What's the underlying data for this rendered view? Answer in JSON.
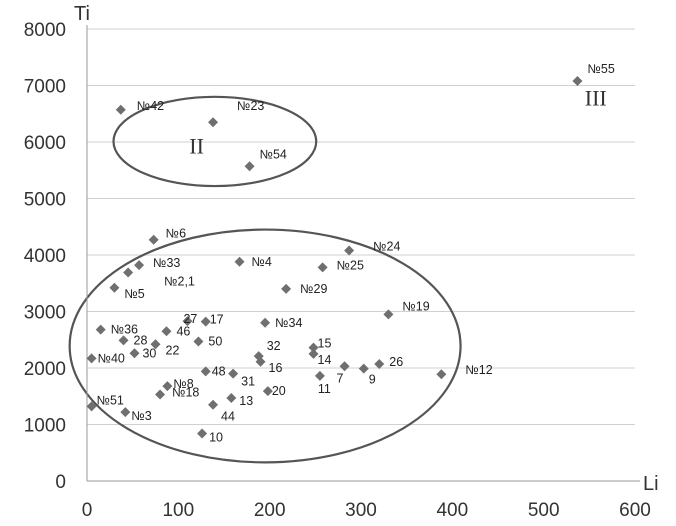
{
  "chart_data": {
    "type": "scatter",
    "xlabel": "Li",
    "ylabel": "Ti",
    "xlim": [
      0,
      600
    ],
    "ylim": [
      0,
      8000
    ],
    "x_ticks": [
      "0",
      "100",
      "200",
      "300",
      "400",
      "500",
      "600"
    ],
    "y_ticks": [
      "0",
      "1000",
      "2000",
      "3000",
      "4000",
      "5000",
      "6000",
      "7000",
      "8000"
    ],
    "grid": "horizontal",
    "marker": "diamond",
    "marker_color": "#6f6f6f",
    "points": [
      {
        "label": "№55",
        "x": 537,
        "y": 7080
      },
      {
        "label": "№42",
        "x": 37,
        "y": 6570
      },
      {
        "label": "№23",
        "x": 138,
        "y": 6350
      },
      {
        "label": "№54",
        "x": 178,
        "y": 5570
      },
      {
        "label": "№6",
        "x": 73,
        "y": 4270
      },
      {
        "label": "№24",
        "x": 287,
        "y": 4080
      },
      {
        "label": "№33",
        "x": 57,
        "y": 3820
      },
      {
        "label": "№4",
        "x": 167,
        "y": 3880
      },
      {
        "label": "№25",
        "x": 258,
        "y": 3780
      },
      {
        "label": "№2,1",
        "x": 45,
        "y": 3690
      },
      {
        "label": "№5",
        "x": 30,
        "y": 3420
      },
      {
        "label": "№29",
        "x": 218,
        "y": 3400
      },
      {
        "label": "№19",
        "x": 330,
        "y": 2950
      },
      {
        "label": "27",
        "x": 110,
        "y": 2830
      },
      {
        "label": "17",
        "x": 130,
        "y": 2820
      },
      {
        "label": "№34",
        "x": 195,
        "y": 2800
      },
      {
        "label": "№36",
        "x": 15,
        "y": 2680
      },
      {
        "label": "46",
        "x": 87,
        "y": 2650
      },
      {
        "label": "28",
        "x": 40,
        "y": 2490
      },
      {
        "label": "50",
        "x": 122,
        "y": 2470
      },
      {
        "label": "22",
        "x": 75,
        "y": 2420
      },
      {
        "label": "15",
        "x": 248,
        "y": 2360
      },
      {
        "label": "30",
        "x": 52,
        "y": 2260
      },
      {
        "label": "32",
        "x": 188,
        "y": 2210
      },
      {
        "label": "14",
        "x": 248,
        "y": 2250
      },
      {
        "label": "№40",
        "x": 5,
        "y": 2170
      },
      {
        "label": "№12",
        "x": 388,
        "y": 1890
      },
      {
        "label": "16",
        "x": 190,
        "y": 2110
      },
      {
        "label": "26",
        "x": 320,
        "y": 2070
      },
      {
        "label": "7",
        "x": 282,
        "y": 2030
      },
      {
        "label": "9",
        "x": 303,
        "y": 1990
      },
      {
        "label": "48",
        "x": 130,
        "y": 1940
      },
      {
        "label": "31",
        "x": 160,
        "y": 1900
      },
      {
        "label": "11",
        "x": 255,
        "y": 1860
      },
      {
        "label": "№8",
        "x": 88,
        "y": 1680
      },
      {
        "label": "20",
        "x": 198,
        "y": 1590
      },
      {
        "label": "№18",
        "x": 80,
        "y": 1530
      },
      {
        "label": "13",
        "x": 158,
        "y": 1470
      },
      {
        "label": "44",
        "x": 138,
        "y": 1350
      },
      {
        "label": "№51",
        "x": 5,
        "y": 1320
      },
      {
        "label": "№3",
        "x": 42,
        "y": 1220
      },
      {
        "label": "10",
        "x": 126,
        "y": 840
      }
    ],
    "group_labels": [
      {
        "label": "II",
        "x": 112,
        "y": 5800
      },
      {
        "label": "III",
        "x": 545,
        "y": 6650
      }
    ],
    "ellipses": [
      {
        "cx": 140,
        "cy": 6010,
        "rx": 111,
        "ry": 790
      },
      {
        "cx": 195,
        "cy": 2390,
        "rx": 214,
        "ry": 2060
      }
    ]
  }
}
